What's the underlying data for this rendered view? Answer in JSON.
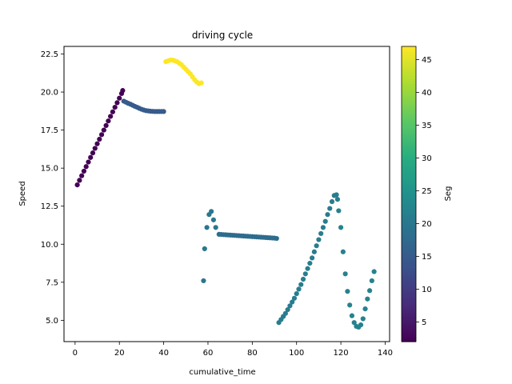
{
  "chart_data": {
    "type": "scatter",
    "title": "driving cycle",
    "xlabel": "cumulative_time",
    "ylabel": "Speed",
    "xlim": [
      -5,
      142
    ],
    "ylim": [
      3.6,
      23.0
    ],
    "xticks": [
      0,
      20,
      40,
      60,
      80,
      100,
      120,
      140
    ],
    "yticks": [
      5.0,
      7.5,
      10.0,
      12.5,
      15.0,
      17.5,
      20.0,
      22.5
    ],
    "ytick_labels": [
      "5.0",
      "7.5",
      "10.0",
      "12.5",
      "15.0",
      "17.5",
      "20.0",
      "22.5"
    ],
    "grid": false,
    "colorbar": {
      "label": "Seg",
      "colormap": "viridis",
      "range": [
        2,
        47
      ],
      "ticks": [
        5,
        10,
        15,
        20,
        25,
        30,
        35,
        40,
        45
      ]
    },
    "segments": [
      {
        "seg": 2,
        "points": [
          [
            1,
            13.9
          ],
          [
            2,
            14.2
          ],
          [
            3,
            14.5
          ],
          [
            4,
            14.8
          ],
          [
            5,
            15.1
          ],
          [
            6,
            15.4
          ],
          [
            7,
            15.7
          ],
          [
            8,
            16.0
          ],
          [
            9,
            16.3
          ],
          [
            10,
            16.6
          ],
          [
            11,
            16.9
          ],
          [
            12,
            17.2
          ],
          [
            13,
            17.5
          ],
          [
            14,
            17.8
          ],
          [
            15,
            18.1
          ],
          [
            16,
            18.4
          ],
          [
            17,
            18.7
          ],
          [
            18,
            19.0
          ],
          [
            19,
            19.3
          ],
          [
            20,
            19.6
          ],
          [
            21,
            19.9
          ],
          [
            21.5,
            20.1
          ]
        ]
      },
      {
        "seg": 15,
        "points": [
          [
            22,
            19.4
          ],
          [
            23,
            19.33
          ],
          [
            24,
            19.26
          ],
          [
            25,
            19.2
          ],
          [
            26,
            19.13
          ],
          [
            27,
            19.06
          ],
          [
            28,
            19.0
          ],
          [
            29,
            18.93
          ],
          [
            30,
            18.87
          ],
          [
            31,
            18.82
          ],
          [
            32,
            18.78
          ],
          [
            33,
            18.76
          ],
          [
            34,
            18.74
          ],
          [
            35,
            18.73
          ],
          [
            36,
            18.72
          ],
          [
            37,
            18.72
          ],
          [
            38,
            18.72
          ],
          [
            39,
            18.72
          ],
          [
            40,
            18.72
          ]
        ]
      },
      {
        "seg": 47,
        "points": [
          [
            41,
            22.0
          ],
          [
            42,
            22.05
          ],
          [
            43,
            22.1
          ],
          [
            44,
            22.1
          ],
          [
            45,
            22.05
          ],
          [
            46,
            22.0
          ],
          [
            47,
            21.9
          ],
          [
            48,
            21.8
          ],
          [
            49,
            21.65
          ],
          [
            50,
            21.5
          ],
          [
            51,
            21.35
          ],
          [
            52,
            21.2
          ],
          [
            53,
            21.0
          ],
          [
            54,
            20.8
          ],
          [
            55,
            20.65
          ],
          [
            56,
            20.55
          ],
          [
            57,
            20.6
          ]
        ]
      },
      {
        "seg": 20,
        "points": [
          [
            58,
            7.6
          ],
          [
            58.5,
            9.7
          ],
          [
            59.5,
            11.1
          ],
          [
            60.5,
            11.95
          ],
          [
            61.5,
            12.15
          ],
          [
            62.5,
            11.6
          ],
          [
            63.5,
            11.1
          ]
        ]
      },
      {
        "seg": 18,
        "points": [
          [
            65,
            10.65
          ],
          [
            66,
            10.64
          ],
          [
            67,
            10.63
          ],
          [
            68,
            10.62
          ],
          [
            69,
            10.61
          ],
          [
            70,
            10.6
          ],
          [
            71,
            10.59
          ],
          [
            72,
            10.58
          ],
          [
            73,
            10.57
          ],
          [
            74,
            10.56
          ],
          [
            75,
            10.55
          ],
          [
            76,
            10.54
          ],
          [
            77,
            10.53
          ],
          [
            78,
            10.52
          ],
          [
            79,
            10.51
          ],
          [
            80,
            10.5
          ],
          [
            81,
            10.49
          ],
          [
            82,
            10.48
          ],
          [
            83,
            10.47
          ],
          [
            84,
            10.46
          ],
          [
            85,
            10.45
          ],
          [
            86,
            10.44
          ],
          [
            87,
            10.43
          ],
          [
            88,
            10.42
          ],
          [
            89,
            10.41
          ],
          [
            90,
            10.4
          ],
          [
            91,
            10.38
          ]
        ]
      },
      {
        "seg": 21,
        "points": [
          [
            92,
            4.85
          ],
          [
            93,
            5.05
          ],
          [
            94,
            5.25
          ],
          [
            95,
            5.45
          ],
          [
            96,
            5.7
          ],
          [
            97,
            5.95
          ],
          [
            98,
            6.2
          ],
          [
            99,
            6.45
          ],
          [
            100,
            6.75
          ],
          [
            101,
            7.05
          ],
          [
            102,
            7.35
          ],
          [
            103,
            7.7
          ],
          [
            104,
            8.05
          ],
          [
            105,
            8.4
          ],
          [
            106,
            8.75
          ],
          [
            107,
            9.1
          ],
          [
            108,
            9.5
          ],
          [
            109,
            9.9
          ],
          [
            110,
            10.3
          ],
          [
            111,
            10.7
          ],
          [
            112,
            11.1
          ],
          [
            113,
            11.5
          ],
          [
            114,
            11.95
          ],
          [
            115,
            12.35
          ],
          [
            116,
            12.8
          ],
          [
            117,
            13.2
          ],
          [
            118,
            13.25
          ],
          [
            118.5,
            12.95
          ]
        ]
      },
      {
        "seg": 22,
        "points": [
          [
            119,
            12.2
          ],
          [
            120,
            11.1
          ],
          [
            121,
            9.5
          ],
          [
            122,
            8.05
          ],
          [
            123,
            6.9
          ],
          [
            124,
            6.0
          ],
          [
            125,
            5.3
          ],
          [
            126,
            4.85
          ],
          [
            127,
            4.6
          ],
          [
            128,
            4.55
          ],
          [
            129,
            4.7
          ],
          [
            130,
            5.1
          ],
          [
            131,
            5.75
          ],
          [
            132,
            6.4
          ],
          [
            133,
            6.95
          ],
          [
            134,
            7.6
          ],
          [
            135,
            8.2
          ]
        ]
      }
    ]
  }
}
